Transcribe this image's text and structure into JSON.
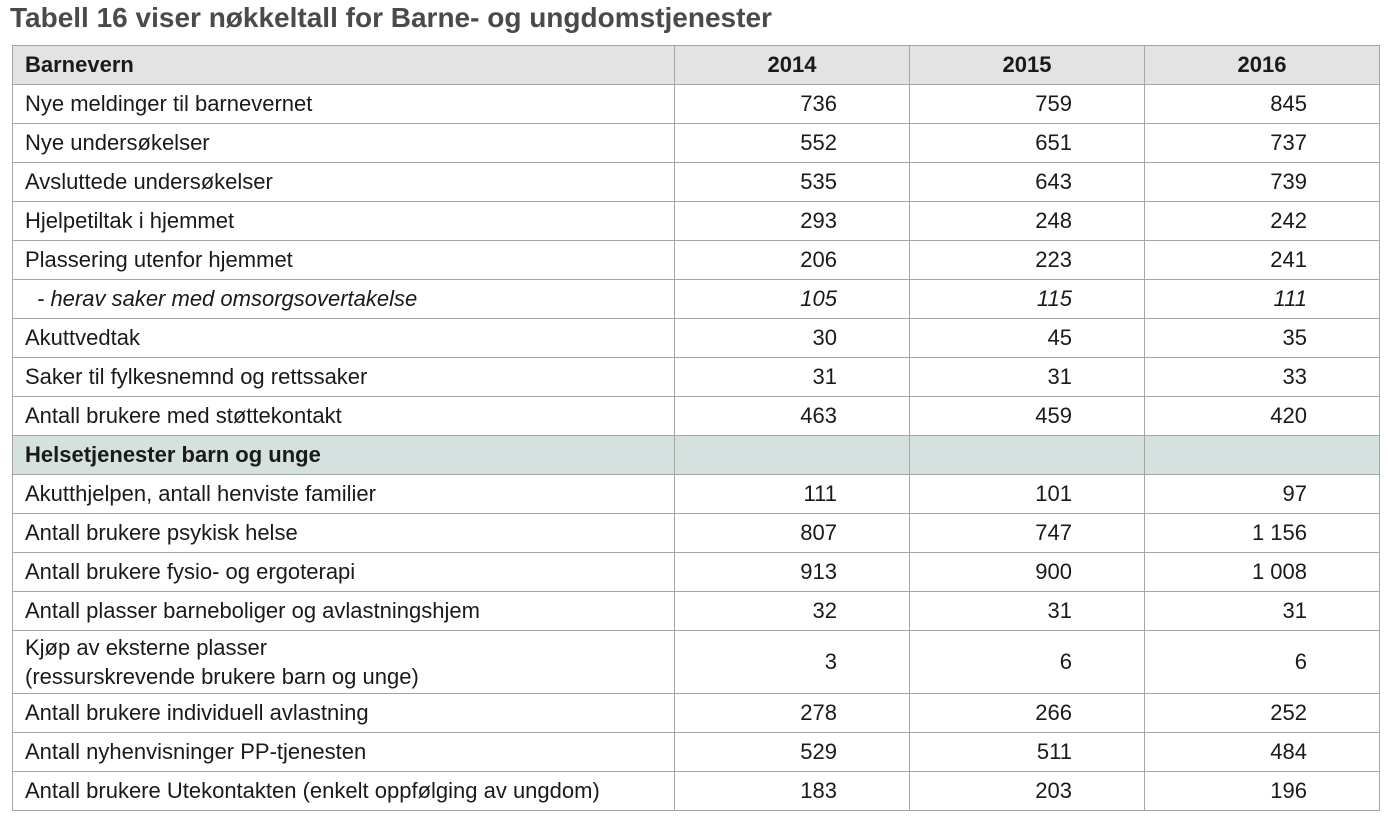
{
  "title": "Tabell 16 viser nøkkeltall for Barne- og ungdomstjenester",
  "header": {
    "label": "Barnevern",
    "years": [
      "2014",
      "2015",
      "2016"
    ]
  },
  "barnevern_rows": [
    {
      "label": "Nye meldinger til barnevernet",
      "values": [
        "736",
        "759",
        "845"
      ]
    },
    {
      "label": "Nye undersøkelser",
      "values": [
        "552",
        "651",
        "737"
      ]
    },
    {
      "label": "Avsluttede undersøkelser",
      "values": [
        "535",
        "643",
        "739"
      ]
    },
    {
      "label": "Hjelpetiltak i hjemmet",
      "values": [
        "293",
        "248",
        "242"
      ]
    },
    {
      "label": "Plassering utenfor hjemmet",
      "values": [
        "206",
        "223",
        "241"
      ]
    },
    {
      "label": "- herav saker med omsorgsovertakelse",
      "values": [
        "105",
        "115",
        "111"
      ]
    },
    {
      "label": "Akuttvedtak",
      "values": [
        "30",
        "45",
        "35"
      ]
    },
    {
      "label": "Saker til fylkesnemnd og rettssaker",
      "values": [
        "31",
        "31",
        "33"
      ]
    },
    {
      "label": "Antall brukere med støttekontakt",
      "values": [
        "463",
        "459",
        "420"
      ]
    }
  ],
  "section2_label": "Helsetjenester barn og unge",
  "helse_rows": [
    {
      "label": "Akutthjelpen, antall henviste familier",
      "values": [
        "111",
        "101",
        "97"
      ]
    },
    {
      "label": "Antall brukere psykisk helse",
      "values": [
        "807",
        "747",
        "1 156"
      ]
    },
    {
      "label": "Antall brukere fysio- og ergoterapi",
      "values": [
        "913",
        "900",
        "1 008"
      ]
    },
    {
      "label": "Antall plasser barneboliger og avlastningshjem",
      "values": [
        "32",
        "31",
        "31"
      ]
    },
    {
      "label_line1": "Kjøp av eksterne plasser",
      "label_line2": "(ressurskrevende brukere barn og unge)",
      "values": [
        "3",
        "6",
        "6"
      ]
    },
    {
      "label": "Antall brukere individuell avlastning",
      "values": [
        "278",
        "266",
        "252"
      ]
    },
    {
      "label": "Antall nyhenvisninger PP-tjenesten",
      "values": [
        "529",
        "511",
        "484"
      ]
    },
    {
      "label": "Antall brukere Utekontakten (enkelt oppfølging av ungdom)",
      "values": [
        "183",
        "203",
        "196"
      ]
    }
  ],
  "colors": {
    "header_bg": "#e3e3e3",
    "section_bg": "#d4e1de",
    "grid": "#a6a6a6",
    "title": "#4a4a4a"
  }
}
